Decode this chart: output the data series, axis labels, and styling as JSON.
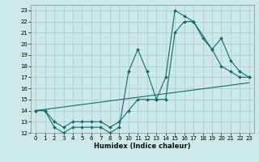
{
  "xlabel": "Humidex (Indice chaleur)",
  "bg_color": "#cce8e8",
  "grid_color": "#aacfcf",
  "line_color": "#1a6b6b",
  "xlim": [
    -0.5,
    23.5
  ],
  "ylim": [
    12,
    23.5
  ],
  "xticks": [
    0,
    1,
    2,
    3,
    4,
    5,
    6,
    7,
    8,
    9,
    10,
    11,
    12,
    13,
    14,
    15,
    16,
    17,
    18,
    19,
    20,
    21,
    22,
    23
  ],
  "yticks": [
    12,
    13,
    14,
    15,
    16,
    17,
    18,
    19,
    20,
    21,
    22,
    23
  ],
  "line1_x": [
    0,
    1,
    2,
    3,
    4,
    5,
    6,
    7,
    8,
    9,
    10,
    11,
    12,
    13,
    14,
    15,
    16,
    17,
    18,
    19,
    20,
    21,
    22,
    23
  ],
  "line1_y": [
    14,
    14,
    12.5,
    12,
    12.5,
    12.5,
    12.5,
    12.5,
    12,
    12.5,
    17.5,
    19.5,
    17.5,
    15,
    17,
    23,
    22.5,
    22,
    20.5,
    19.5,
    18,
    17.5,
    17,
    17
  ],
  "line2_x": [
    0,
    1,
    2,
    3,
    4,
    5,
    6,
    7,
    8,
    9,
    10,
    11,
    12,
    13,
    14,
    15,
    16,
    17,
    19,
    20,
    21,
    22,
    23
  ],
  "line2_y": [
    14,
    14,
    13,
    12.5,
    13,
    13,
    13,
    13,
    12.5,
    13,
    14,
    15,
    15,
    15,
    15,
    21,
    22,
    22,
    19.5,
    20.5,
    18.5,
    17.5,
    17
  ],
  "line3_x": [
    0,
    23
  ],
  "line3_y": [
    14,
    16.5
  ],
  "marker_size": 2,
  "linewidth": 0.8
}
